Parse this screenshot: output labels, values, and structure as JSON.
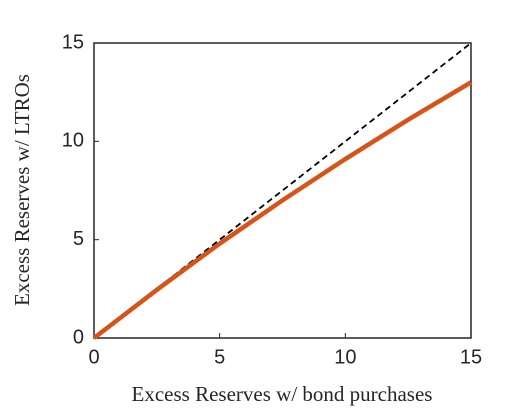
{
  "chart_data": {
    "type": "line",
    "xlabel": "Excess Reserves w/ bond purchases",
    "ylabel": "Excess Reserves w/ LTROs",
    "x": [
      0,
      2.5,
      5,
      7.5,
      10,
      12.5,
      15
    ],
    "series": [
      {
        "color": "#000000",
        "dashed": true,
        "values": [
          0,
          2.5,
          5,
          7.5,
          10,
          12.5,
          15
        ]
      },
      {
        "color": "#d95319",
        "dashed": false,
        "values": [
          0,
          2.45,
          4.8,
          7.0,
          9.1,
          11.1,
          13.0
        ]
      }
    ],
    "xlim": [
      0,
      15
    ],
    "ylim": [
      0,
      15
    ],
    "xticks": [
      0,
      5,
      10,
      15
    ],
    "yticks": [
      0,
      5,
      10,
      15
    ]
  }
}
